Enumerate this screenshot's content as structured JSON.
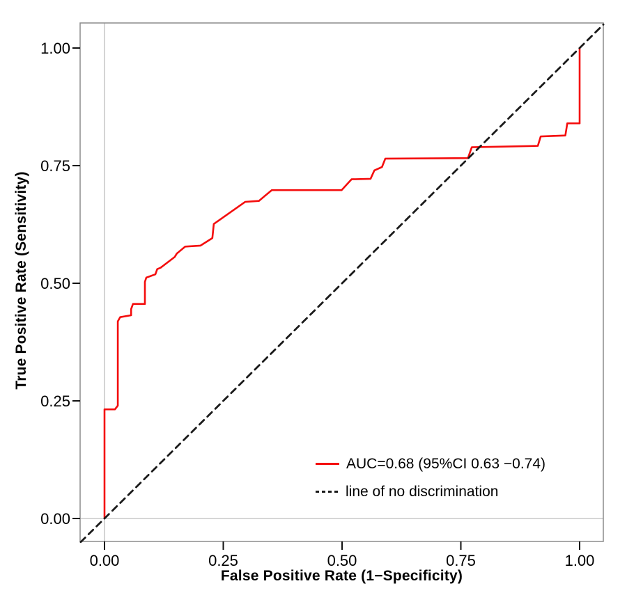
{
  "chart_data": {
    "type": "line",
    "title": "",
    "xlabel": "False Positive Rate (1−Specificity)",
    "ylabel": "True Positive Rate (Sensitivity)",
    "xlim": [
      -0.05,
      1.05
    ],
    "ylim": [
      -0.05,
      1.05
    ],
    "grid": "zero reference lines only",
    "legend_position": "bottom-right inside plot",
    "x_ticks": {
      "values": [
        0,
        0.25,
        0.5,
        0.75,
        1.0
      ],
      "labels": [
        "0.00",
        "0.25",
        "0.50",
        "0.75",
        "1.00"
      ]
    },
    "y_ticks": {
      "values": [
        0,
        0.25,
        0.5,
        0.75,
        1.0
      ],
      "labels": [
        "0.00",
        "0.25",
        "0.50",
        "0.75",
        "1.00"
      ]
    },
    "auc": {
      "value": "0.68",
      "ci_level": "95%",
      "ci_low": "0.63",
      "ci_high": "0.74"
    },
    "series": [
      {
        "name": "roc-curve",
        "legend_label": "AUC=0.68 (95%CI 0.63 −0.74)",
        "color": "#f40d0d",
        "style": "solid",
        "points": [
          [
            0.0,
            0.0
          ],
          [
            0.0,
            0.232
          ],
          [
            0.022,
            0.232
          ],
          [
            0.028,
            0.24
          ],
          [
            0.028,
            0.419
          ],
          [
            0.033,
            0.428
          ],
          [
            0.056,
            0.432
          ],
          [
            0.056,
            0.445
          ],
          [
            0.06,
            0.456
          ],
          [
            0.085,
            0.456
          ],
          [
            0.085,
            0.503
          ],
          [
            0.088,
            0.512
          ],
          [
            0.107,
            0.519
          ],
          [
            0.111,
            0.53
          ],
          [
            0.118,
            0.533
          ],
          [
            0.148,
            0.556
          ],
          [
            0.152,
            0.563
          ],
          [
            0.17,
            0.578
          ],
          [
            0.202,
            0.58
          ],
          [
            0.227,
            0.596
          ],
          [
            0.23,
            0.626
          ],
          [
            0.296,
            0.673
          ],
          [
            0.325,
            0.675
          ],
          [
            0.352,
            0.698
          ],
          [
            0.499,
            0.698
          ],
          [
            0.52,
            0.721
          ],
          [
            0.56,
            0.722
          ],
          [
            0.568,
            0.74
          ],
          [
            0.584,
            0.747
          ],
          [
            0.591,
            0.765
          ],
          [
            0.765,
            0.766
          ],
          [
            0.773,
            0.789
          ],
          [
            0.912,
            0.792
          ],
          [
            0.918,
            0.812
          ],
          [
            0.97,
            0.814
          ],
          [
            0.974,
            0.84
          ],
          [
            1.0,
            0.84
          ],
          [
            1.0,
            1.0
          ]
        ]
      },
      {
        "name": "no-discrimination-line",
        "legend_label": "line of no discrimination",
        "color": "#1a1a1a",
        "style": "dashed",
        "points": [
          [
            -0.05,
            -0.05
          ],
          [
            1.05,
            1.05
          ]
        ]
      }
    ],
    "colors": {
      "frame": "#8c8c8c",
      "zero_gridline": "#bdbdbd",
      "tick": "#111111",
      "text": "#000000",
      "background": "#ffffff"
    }
  },
  "legend": {
    "roc_label": "AUC=0.68 (95%CI 0.63 −0.74)",
    "diagonal_label": "line of no discrimination"
  }
}
